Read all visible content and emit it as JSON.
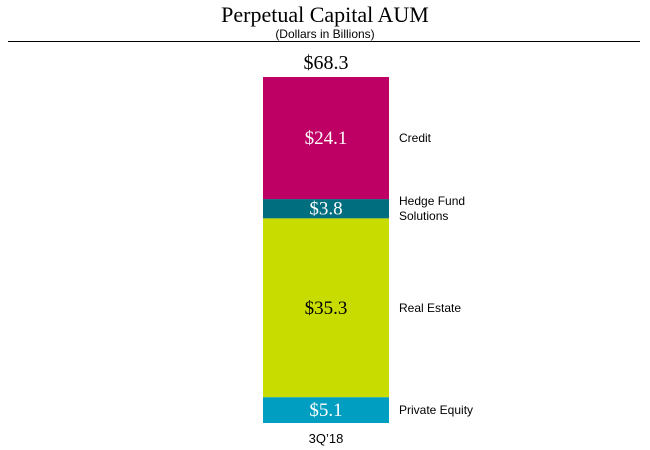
{
  "chart_data": {
    "type": "bar",
    "stacked": true,
    "title": "Perpetual Capital AUM",
    "subtitle": "(Dollars in Billions)",
    "categories": [
      "3Q’18"
    ],
    "total": 68.3,
    "total_label": "$68.3",
    "series": [
      {
        "name": "Private Equity",
        "label_lines": [
          "Private Equity"
        ],
        "values": [
          5.1
        ],
        "value_label": "$5.1",
        "color": "#009fc2",
        "text_color": "#ffffff"
      },
      {
        "name": "Real Estate",
        "label_lines": [
          "Real Estate"
        ],
        "values": [
          35.3
        ],
        "value_label": "$35.3",
        "color": "#c9dc00",
        "text_color": "#000000"
      },
      {
        "name": "Hedge Fund Solutions",
        "label_lines": [
          "Hedge Fund",
          "Solutions"
        ],
        "values": [
          3.8
        ],
        "value_label": "$3.8",
        "color": "#006e7f",
        "text_color": "#ffffff"
      },
      {
        "name": "Credit",
        "label_lines": [
          "Credit"
        ],
        "values": [
          24.1
        ],
        "value_label": "$24.1",
        "color": "#be0064",
        "text_color": "#ffffff"
      }
    ],
    "grid": false,
    "legend": "right-inline"
  }
}
